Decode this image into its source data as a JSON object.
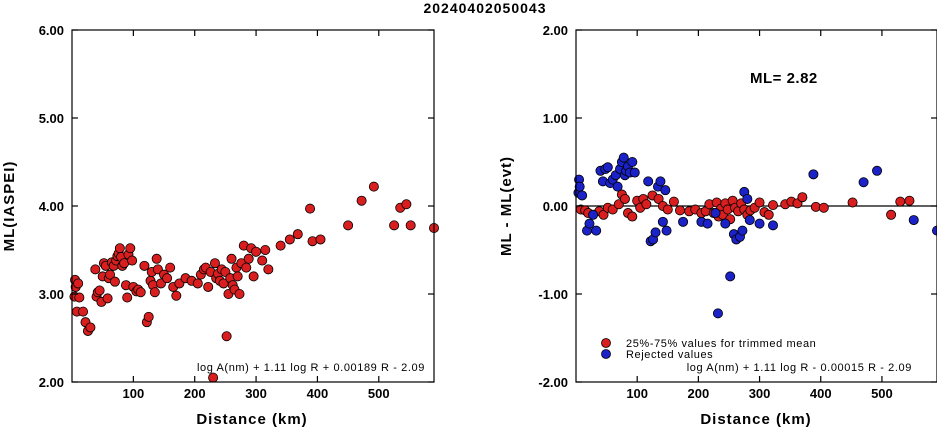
{
  "title": "20240402050043",
  "chart_data": [
    {
      "type": "scatter",
      "ylabel": "ML(IASPEI)",
      "xlabel": "Distance (km)",
      "xlim": [
        0,
        590
      ],
      "ylim": [
        2.0,
        6.0
      ],
      "x_ticks": [
        100,
        200,
        300,
        400,
        500
      ],
      "x_tick_labels": [
        "100",
        "200",
        "300",
        "400",
        "500"
      ],
      "y_ticks": [
        2.0,
        3.0,
        4.0,
        5.0,
        6.0
      ],
      "y_tick_labels": [
        "2.00",
        "3.00",
        "4.00",
        "5.00",
        "6.00"
      ],
      "annotation": "log A(nm) + 1.11 log R + 0.00189 R - 2.09",
      "series": [
        {
          "color": "#d81e1e",
          "points": [
            [
              4,
              2.97
            ],
            [
              5,
              3.16
            ],
            [
              6,
              3.08
            ],
            [
              8,
              2.8
            ],
            [
              10,
              3.12
            ],
            [
              12,
              2.96
            ],
            [
              18,
              2.8
            ],
            [
              22,
              2.68
            ],
            [
              26,
              2.58
            ],
            [
              30,
              2.62
            ],
            [
              38,
              3.28
            ],
            [
              40,
              2.97
            ],
            [
              42,
              3.02
            ],
            [
              45,
              3.04
            ],
            [
              48,
              2.91
            ],
            [
              50,
              3.2
            ],
            [
              52,
              3.35
            ],
            [
              55,
              3.32
            ],
            [
              58,
              2.95
            ],
            [
              60,
              3.18
            ],
            [
              62,
              3.22
            ],
            [
              65,
              3.36
            ],
            [
              68,
              3.32
            ],
            [
              70,
              3.14
            ],
            [
              72,
              3.38
            ],
            [
              74,
              3.43
            ],
            [
              76,
              3.46
            ],
            [
              78,
              3.52
            ],
            [
              80,
              3.42
            ],
            [
              82,
              3.32
            ],
            [
              85,
              3.35
            ],
            [
              88,
              3.1
            ],
            [
              90,
              2.96
            ],
            [
              92,
              3.45
            ],
            [
              95,
              3.52
            ],
            [
              98,
              3.38
            ],
            [
              100,
              3.08
            ],
            [
              105,
              3.03
            ],
            [
              108,
              3.05
            ],
            [
              112,
              3.02
            ],
            [
              118,
              3.32
            ],
            [
              122,
              2.68
            ],
            [
              125,
              2.74
            ],
            [
              128,
              3.15
            ],
            [
              130,
              3.25
            ],
            [
              132,
              3.1
            ],
            [
              135,
              3.02
            ],
            [
              138,
              3.4
            ],
            [
              140,
              3.28
            ],
            [
              145,
              3.12
            ],
            [
              150,
              3.22
            ],
            [
              155,
              3.18
            ],
            [
              160,
              3.3
            ],
            [
              165,
              3.08
            ],
            [
              170,
              2.98
            ],
            [
              175,
              3.12
            ],
            [
              185,
              3.18
            ],
            [
              195,
              3.15
            ],
            [
              205,
              3.12
            ],
            [
              210,
              3.22
            ],
            [
              215,
              3.28
            ],
            [
              218,
              3.3
            ],
            [
              222,
              3.08
            ],
            [
              226,
              3.25
            ],
            [
              230,
              2.05
            ],
            [
              233,
              3.35
            ],
            [
              235,
              3.18
            ],
            [
              238,
              3.23
            ],
            [
              241,
              3.15
            ],
            [
              244,
              3.28
            ],
            [
              247,
              3.12
            ],
            [
              250,
              3.25
            ],
            [
              252,
              2.52
            ],
            [
              255,
              3.0
            ],
            [
              258,
              3.18
            ],
            [
              260,
              3.4
            ],
            [
              262,
              3.1
            ],
            [
              265,
              3.05
            ],
            [
              268,
              3.3
            ],
            [
              270,
              3.2
            ],
            [
              273,
              3.0
            ],
            [
              276,
              3.35
            ],
            [
              280,
              3.55
            ],
            [
              284,
              3.3
            ],
            [
              288,
              3.4
            ],
            [
              292,
              3.52
            ],
            [
              296,
              3.2
            ],
            [
              300,
              3.48
            ],
            [
              310,
              3.38
            ],
            [
              315,
              3.5
            ],
            [
              320,
              3.28
            ],
            [
              340,
              3.55
            ],
            [
              355,
              3.62
            ],
            [
              368,
              3.68
            ],
            [
              388,
              3.97
            ],
            [
              392,
              3.6
            ],
            [
              405,
              3.62
            ],
            [
              450,
              3.78
            ],
            [
              472,
              4.06
            ],
            [
              492,
              4.22
            ],
            [
              525,
              3.78
            ],
            [
              535,
              3.98
            ],
            [
              545,
              4.02
            ],
            [
              552,
              3.78
            ],
            [
              590,
              3.75
            ]
          ]
        }
      ]
    },
    {
      "type": "scatter",
      "ylabel": "ML - ML(evt)",
      "xlabel": "Distance (km)",
      "xlim": [
        0,
        590
      ],
      "ylim": [
        -2.0,
        2.0
      ],
      "x_ticks": [
        100,
        200,
        300,
        400,
        500
      ],
      "x_tick_labels": [
        "100",
        "200",
        "300",
        "400",
        "500"
      ],
      "y_ticks": [
        -2.0,
        -1.0,
        0.0,
        1.0,
        2.0
      ],
      "y_tick_labels": [
        "-2.00",
        "-1.00",
        "0.00",
        "1.00",
        "2.00"
      ],
      "reference_line": 0,
      "ml_label": "ML= 2.82",
      "annotation": "log A(nm) + 1.11 log R - 0.00015 R - 2.09",
      "series": [
        {
          "name": "25%-75% values for trimmed mean",
          "color": "#d81e1e",
          "points": [
            [
              8,
              -0.04
            ],
            [
              15,
              -0.05
            ],
            [
              20,
              -0.08
            ],
            [
              38,
              -0.06
            ],
            [
              45,
              -0.1
            ],
            [
              52,
              -0.02
            ],
            [
              60,
              -0.04
            ],
            [
              70,
              0.02
            ],
            [
              75,
              0.13
            ],
            [
              80,
              0.08
            ],
            [
              85,
              -0.08
            ],
            [
              92,
              -0.12
            ],
            [
              100,
              0.06
            ],
            [
              105,
              -0.02
            ],
            [
              110,
              0.08
            ],
            [
              115,
              0.02
            ],
            [
              125,
              0.12
            ],
            [
              135,
              0.08
            ],
            [
              142,
              0.0
            ],
            [
              150,
              -0.04
            ],
            [
              160,
              0.05
            ],
            [
              170,
              -0.05
            ],
            [
              185,
              -0.06
            ],
            [
              195,
              -0.04
            ],
            [
              205,
              -0.08
            ],
            [
              212,
              -0.06
            ],
            [
              218,
              0.02
            ],
            [
              225,
              -0.08
            ],
            [
              230,
              0.04
            ],
            [
              233,
              -0.12
            ],
            [
              237,
              -0.03
            ],
            [
              240,
              -0.1
            ],
            [
              244,
              0.03
            ],
            [
              248,
              -0.04
            ],
            [
              252,
              -0.15
            ],
            [
              256,
              0.06
            ],
            [
              260,
              -0.02
            ],
            [
              265,
              -0.06
            ],
            [
              270,
              0.03
            ],
            [
              275,
              -0.04
            ],
            [
              280,
              -0.1
            ],
            [
              285,
              -0.05
            ],
            [
              292,
              -0.02
            ],
            [
              300,
              0.04
            ],
            [
              308,
              -0.07
            ],
            [
              315,
              -0.1
            ],
            [
              322,
              0.01
            ],
            [
              342,
              0.02
            ],
            [
              352,
              0.05
            ],
            [
              362,
              0.03
            ],
            [
              370,
              0.1
            ],
            [
              392,
              -0.01
            ],
            [
              405,
              -0.02
            ],
            [
              452,
              0.04
            ],
            [
              515,
              -0.1
            ],
            [
              530,
              0.05
            ],
            [
              545,
              0.06
            ]
          ]
        },
        {
          "name": "Rejected values",
          "color": "#1a22c8",
          "points": [
            [
              4,
              0.15
            ],
            [
              5,
              0.3
            ],
            [
              6,
              0.22
            ],
            [
              10,
              0.12
            ],
            [
              18,
              -0.28
            ],
            [
              22,
              -0.2
            ],
            [
              28,
              -0.1
            ],
            [
              33,
              -0.28
            ],
            [
              40,
              0.4
            ],
            [
              44,
              0.28
            ],
            [
              48,
              0.42
            ],
            [
              52,
              0.44
            ],
            [
              56,
              0.26
            ],
            [
              60,
              0.3
            ],
            [
              65,
              0.35
            ],
            [
              68,
              0.22
            ],
            [
              72,
              0.42
            ],
            [
              75,
              0.5
            ],
            [
              78,
              0.55
            ],
            [
              80,
              0.35
            ],
            [
              82,
              0.4
            ],
            [
              85,
              0.45
            ],
            [
              88,
              0.38
            ],
            [
              92,
              0.5
            ],
            [
              96,
              0.38
            ],
            [
              118,
              0.28
            ],
            [
              122,
              -0.4
            ],
            [
              126,
              -0.38
            ],
            [
              130,
              -0.3
            ],
            [
              134,
              0.22
            ],
            [
              138,
              0.28
            ],
            [
              142,
              -0.18
            ],
            [
              146,
              0.18
            ],
            [
              148,
              -0.28
            ],
            [
              175,
              -0.18
            ],
            [
              205,
              -0.18
            ],
            [
              215,
              -0.2
            ],
            [
              228,
              -0.08
            ],
            [
              232,
              -1.22
            ],
            [
              244,
              -0.2
            ],
            [
              252,
              -0.8
            ],
            [
              258,
              -0.32
            ],
            [
              262,
              -0.38
            ],
            [
              268,
              -0.35
            ],
            [
              272,
              -0.28
            ],
            [
              275,
              0.16
            ],
            [
              280,
              0.08
            ],
            [
              284,
              -0.16
            ],
            [
              300,
              -0.2
            ],
            [
              322,
              -0.22
            ],
            [
              388,
              0.36
            ],
            [
              470,
              0.27
            ],
            [
              492,
              0.4
            ],
            [
              552,
              -0.16
            ],
            [
              590,
              -0.28
            ]
          ]
        }
      ],
      "legend": [
        {
          "label": "25%-75% values for trimmed mean",
          "color": "#d81e1e"
        },
        {
          "label": "Rejected values",
          "color": "#1a22c8"
        }
      ]
    }
  ]
}
